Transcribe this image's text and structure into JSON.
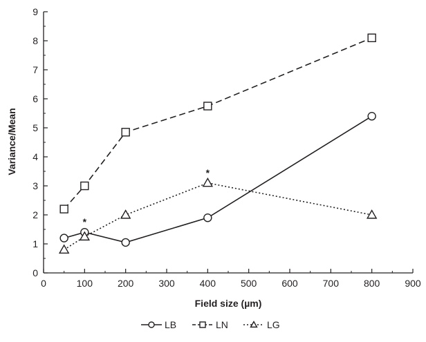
{
  "chart_data": {
    "type": "line",
    "title": "",
    "xlabel": "Field size (µm)",
    "ylabel": "Variance/Mean",
    "xlim": [
      0,
      900
    ],
    "ylim": [
      0,
      9
    ],
    "x_ticks": [
      "0",
      "100",
      "200",
      "300",
      "400",
      "500",
      "600",
      "700",
      "800",
      "900"
    ],
    "y_ticks": [
      "0",
      "1",
      "2",
      "3",
      "4",
      "5",
      "6",
      "7",
      "8",
      "9"
    ],
    "grid": false,
    "legend_position": "bottom-center",
    "series": [
      {
        "name": "LB",
        "marker": "circle",
        "line_style": "solid",
        "x": [
          50,
          100,
          200,
          400,
          800
        ],
        "y": [
          1.2,
          1.4,
          1.05,
          1.9,
          5.4
        ]
      },
      {
        "name": "LN",
        "marker": "square",
        "line_style": "dashed",
        "x": [
          50,
          100,
          200,
          400,
          800
        ],
        "y": [
          2.2,
          3.0,
          4.85,
          5.75,
          8.1
        ]
      },
      {
        "name": "LG",
        "marker": "triangle",
        "line_style": "dotted",
        "x": [
          50,
          100,
          200,
          400,
          800
        ],
        "y": [
          0.8,
          1.25,
          2.0,
          3.1,
          2.0
        ]
      }
    ],
    "annotations": [
      {
        "text": "*",
        "x": 100,
        "y": 1.4
      },
      {
        "text": "*",
        "x": 400,
        "y": 3.1
      }
    ]
  }
}
